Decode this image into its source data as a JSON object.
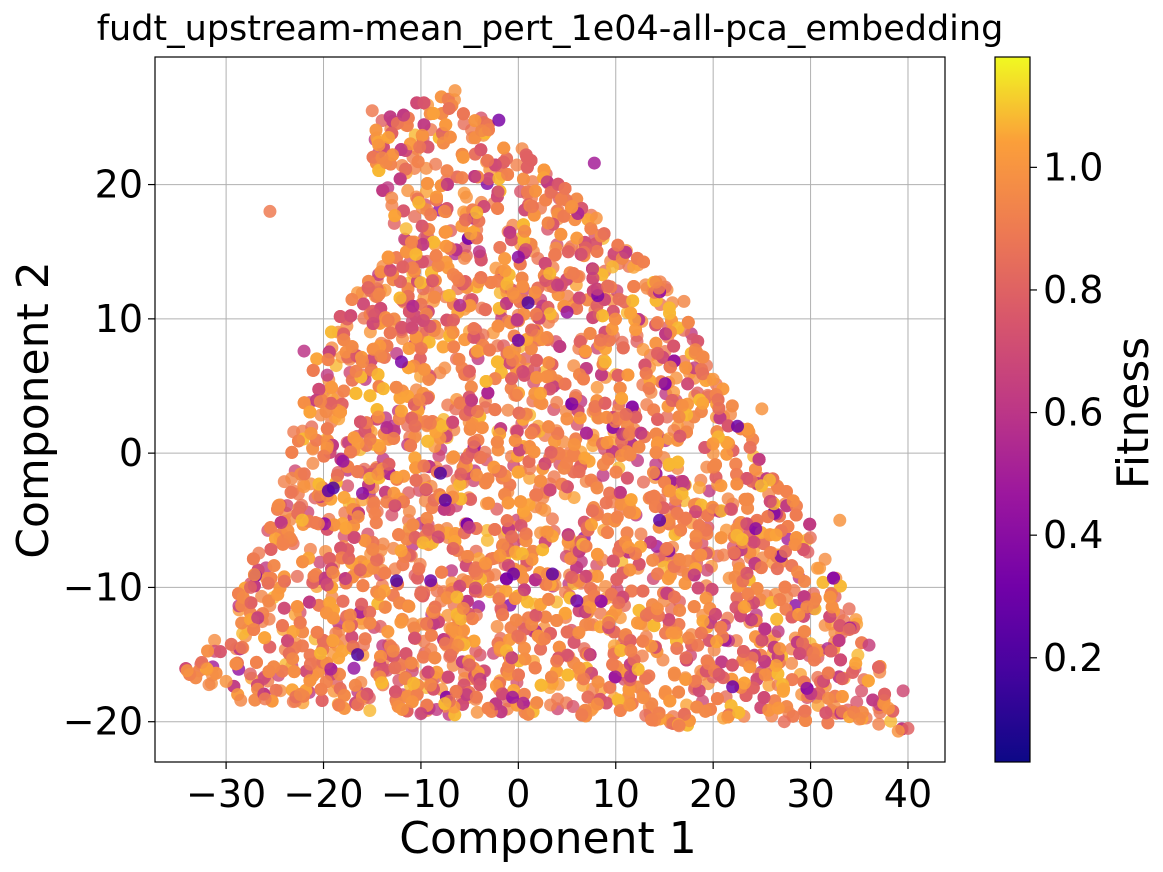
{
  "chart_data": {
    "type": "scatter",
    "title": "fudt_upstream-mean_pert_1e04-all-pca_embedding",
    "xlabel": "Component 1",
    "ylabel": "Component 2",
    "xlim": [
      -37.3,
      43.8
    ],
    "ylim": [
      -23.0,
      29.5
    ],
    "xticks": [
      -30,
      -20,
      -10,
      0,
      10,
      20,
      30,
      40
    ],
    "yticks": [
      -20,
      -10,
      0,
      10,
      20
    ],
    "xtick_labels": [
      "−30",
      "−20",
      "−10",
      "0",
      "10",
      "20",
      "30",
      "40"
    ],
    "ytick_labels": [
      "−20",
      "−10",
      "0",
      "10",
      "20"
    ],
    "grid": true,
    "colormap": "plasma",
    "colorbar": {
      "label": "Fitness",
      "range": [
        0.03,
        1.18
      ],
      "ticks": [
        0.2,
        0.4,
        0.6,
        0.8,
        1.0
      ],
      "tick_labels": [
        "0.2",
        "0.4",
        "0.6",
        "0.8",
        "1.0"
      ]
    },
    "point_cloud_outline": [
      [
        -34.5,
        -16.2
      ],
      [
        -28.5,
        -18.5
      ],
      [
        -10,
        -19.5
      ],
      [
        5,
        -19.5
      ],
      [
        17,
        -20.3
      ],
      [
        28,
        -19.8
      ],
      [
        39.5,
        -20.7
      ],
      [
        40,
        -20.5
      ],
      [
        36,
        -14
      ],
      [
        30,
        -5
      ],
      [
        25,
        0
      ],
      [
        21,
        5
      ],
      [
        15,
        13
      ],
      [
        10,
        16
      ],
      [
        5,
        20
      ],
      [
        0,
        23
      ],
      [
        -7,
        27
      ],
      [
        -15,
        25
      ],
      [
        -15,
        19
      ],
      [
        -12,
        16
      ],
      [
        -20,
        9
      ],
      [
        -23,
        2
      ],
      [
        -26,
        -6
      ],
      [
        -30,
        -12
      ]
    ],
    "points": [
      {
        "x": -34.0,
        "y": -16.2,
        "fitness": 1.0
      },
      {
        "x": -30.0,
        "y": -17.0,
        "fitness": 1.0
      },
      {
        "x": -28.5,
        "y": -18.4,
        "fitness": 0.95
      },
      {
        "x": -26.0,
        "y": -18.3,
        "fitness": 0.9
      },
      {
        "x": -25.5,
        "y": 18.0,
        "fitness": 0.9
      },
      {
        "x": -27.5,
        "y": -10.0,
        "fitness": 0.8
      },
      {
        "x": -22.0,
        "y": 7.6,
        "fitness": 0.6
      },
      {
        "x": -22.0,
        "y": -2.5,
        "fitness": 1.0
      },
      {
        "x": -19.0,
        "y": -2.6,
        "fitness": 0.2
      },
      {
        "x": -19.5,
        "y": -2.8,
        "fitness": 0.25
      },
      {
        "x": -16.0,
        "y": -3.0,
        "fitness": 0.4
      },
      {
        "x": -18.0,
        "y": -0.6,
        "fitness": 0.45
      },
      {
        "x": -12.0,
        "y": 6.8,
        "fitness": 0.35
      },
      {
        "x": -16.5,
        "y": -15.0,
        "fitness": 0.2
      },
      {
        "x": -12.5,
        "y": -9.5,
        "fitness": 0.2
      },
      {
        "x": -9.0,
        "y": -9.5,
        "fitness": 0.3
      },
      {
        "x": -8.0,
        "y": -1.5,
        "fitness": 0.2
      },
      {
        "x": -7.5,
        "y": -3.5,
        "fitness": 0.25
      },
      {
        "x": -6.0,
        "y": 11.0,
        "fitness": 0.55
      },
      {
        "x": 1.0,
        "y": 11.2,
        "fitness": 0.2
      },
      {
        "x": 0.0,
        "y": 8.4,
        "fitness": 0.3
      },
      {
        "x": 0.0,
        "y": 14.6,
        "fitness": 0.4
      },
      {
        "x": -2.0,
        "y": 24.8,
        "fitness": 0.35
      },
      {
        "x": -0.5,
        "y": -9.0,
        "fitness": 0.3
      },
      {
        "x": 3.5,
        "y": -9.0,
        "fitness": 0.25
      },
      {
        "x": 6.0,
        "y": -11.0,
        "fitness": 0.3
      },
      {
        "x": 14.5,
        "y": -5.0,
        "fitness": 0.25
      },
      {
        "x": 22.5,
        "y": 2.0,
        "fitness": 0.3
      },
      {
        "x": 22.0,
        "y": -17.4,
        "fitness": 0.3
      },
      {
        "x": 7.8,
        "y": 21.6,
        "fitness": 0.5
      },
      {
        "x": 5.0,
        "y": 10.5,
        "fitness": 0.45
      },
      {
        "x": -4.0,
        "y": 15.0,
        "fitness": 0.6
      },
      {
        "x": 36.0,
        "y": -14.3,
        "fitness": 0.65
      },
      {
        "x": 39.5,
        "y": -17.7,
        "fitness": 0.7
      },
      {
        "x": 40.0,
        "y": -20.5,
        "fitness": 0.8
      },
      {
        "x": 39.0,
        "y": -20.7,
        "fitness": 1.0
      },
      {
        "x": 38.0,
        "y": -19.0,
        "fitness": 1.0
      },
      {
        "x": 35.0,
        "y": -19.8,
        "fitness": 0.95
      },
      {
        "x": 27.3,
        "y": -20.0,
        "fitness": 0.85
      },
      {
        "x": 16.5,
        "y": -20.3,
        "fitness": 0.9
      },
      {
        "x": -10.0,
        "y": -19.4,
        "fitness": 0.65
      },
      {
        "x": 33.0,
        "y": -5.0,
        "fitness": 1.0
      },
      {
        "x": 25.0,
        "y": 3.3,
        "fitness": 1.0
      },
      {
        "x": 20.0,
        "y": 5.5,
        "fitness": 1.0
      },
      {
        "x": 17.0,
        "y": 11.3,
        "fitness": 0.95
      },
      {
        "x": 8.0,
        "y": 17.5,
        "fitness": 1.0
      },
      {
        "x": -6.5,
        "y": 27.0,
        "fitness": 1.0
      },
      {
        "x": -15.0,
        "y": 25.5,
        "fitness": 0.9
      },
      {
        "x": -14.0,
        "y": 22.0,
        "fitness": 0.95
      },
      {
        "x": -13.0,
        "y": 19.0,
        "fitness": 0.95
      }
    ]
  }
}
